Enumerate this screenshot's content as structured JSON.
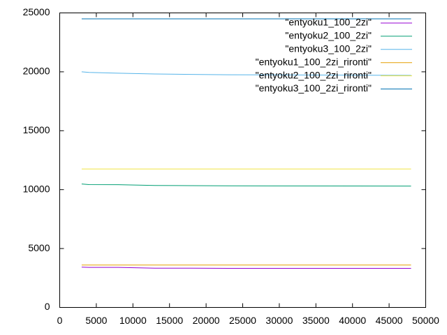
{
  "chart_data": {
    "type": "line",
    "x": [
      3000,
      4000,
      8000,
      13000,
      18000,
      23000,
      48000
    ],
    "series": [
      {
        "name": "\"entyoku1_100_2zi\"",
        "color": "#9400d3",
        "values": [
          3420,
          3400,
          3400,
          3330,
          3330,
          3320,
          3320
        ]
      },
      {
        "name": "\"entyoku2_100_2zi\"",
        "color": "#009e73",
        "values": [
          10480,
          10430,
          10420,
          10350,
          10340,
          10320,
          10300
        ]
      },
      {
        "name": "\"entyoku3_100_2zi\"",
        "color": "#56b4e9",
        "values": [
          20000,
          19950,
          19880,
          19820,
          19780,
          19750,
          19700
        ]
      },
      {
        "name": "\"entyoku1_100_2zi_rironti\"",
        "color": "#e69f00",
        "values": [
          3600,
          3600,
          3600,
          3600,
          3600,
          3600,
          3600
        ]
      },
      {
        "name": "\"entyoku2_100_2zi_rironti\"",
        "color": "#f0e442",
        "values": [
          11750,
          11750,
          11750,
          11750,
          11750,
          11750,
          11750
        ]
      },
      {
        "name": "\"entyoku3_100_2zi_rironti\"",
        "color": "#0072b2",
        "values": [
          24500,
          24500,
          24500,
          24500,
          24500,
          24500,
          24500
        ]
      }
    ],
    "xlim": [
      0,
      50000
    ],
    "xticks": [
      0,
      5000,
      10000,
      15000,
      20000,
      25000,
      30000,
      35000,
      40000,
      45000,
      50000
    ],
    "ylim": [
      0,
      25000
    ],
    "yticks": [
      0,
      5000,
      10000,
      15000,
      20000,
      25000
    ],
    "grid": false,
    "legend": "top-right"
  }
}
